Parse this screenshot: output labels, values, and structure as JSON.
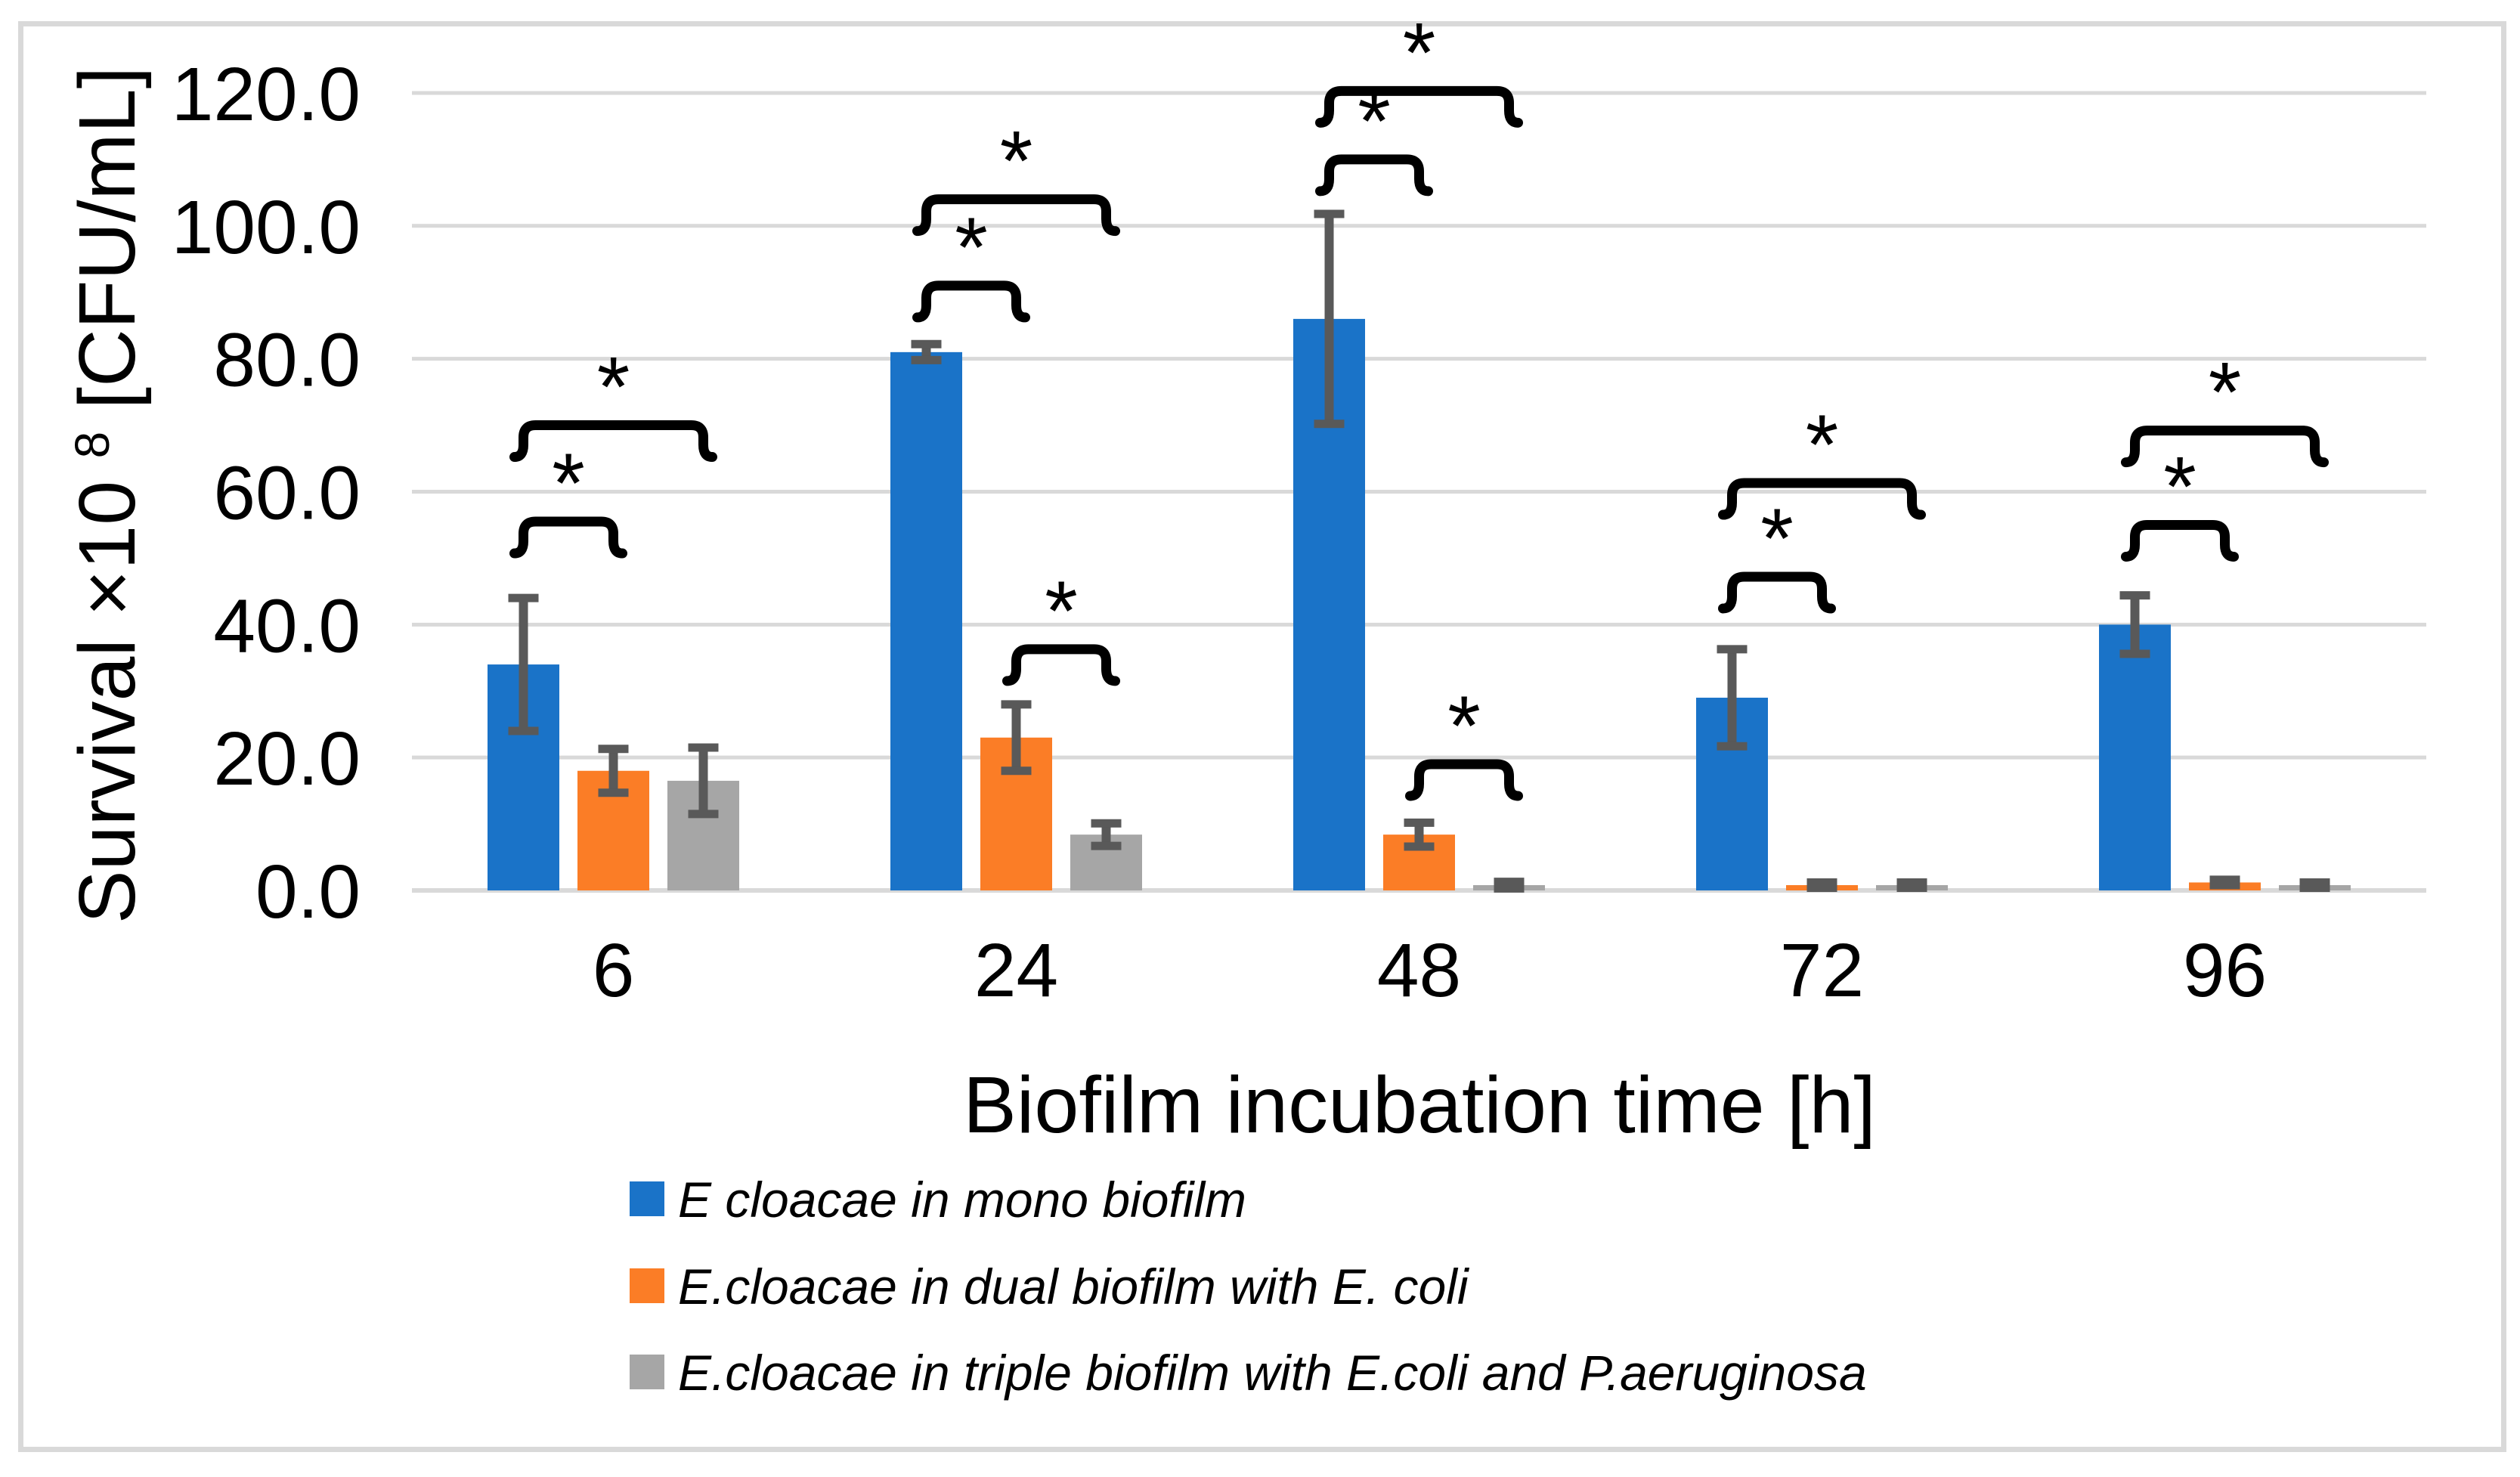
{
  "figure": {
    "background": "#FFFFFF",
    "border_color": "#D9D9D9"
  },
  "chart_data": {
    "type": "bar",
    "title": "",
    "xlabel": "Biofilm incubation time [h]",
    "ylabel": "Survival ×10⁸ [CFU/mL]",
    "ylabel_parts": {
      "prefix": "Survival ×10",
      "superscript": "8",
      "suffix": " [CFU/mL]"
    },
    "categories": [
      "6",
      "24",
      "48",
      "72",
      "96"
    ],
    "y_ticks": [
      "120.0",
      "100.0",
      "80.0",
      "60.0",
      "40.0",
      "20.0",
      "0.0"
    ],
    "ylim": [
      0,
      120
    ],
    "grid": true,
    "gridline_color": "#D9D9D9",
    "error_bar_color": "#595959",
    "legend_position": "bottom-left",
    "series": [
      {
        "name": "E cloacae in mono biofilm",
        "color": "#1A73C8",
        "values": [
          34,
          81,
          86,
          29,
          40
        ],
        "errors": [
          10,
          1.2,
          15.8,
          7.3,
          4.4
        ]
      },
      {
        "name": "E.cloacae in dual biofilm with E. coli",
        "color": "#FB7D26",
        "values": [
          18,
          23,
          8.4,
          0.8,
          1.2
        ],
        "errors": [
          3.3,
          5,
          1.8,
          0.4,
          0.4
        ]
      },
      {
        "name": "E.cloacae in triple biofilm with E.coli and P.aeruginosa",
        "color": "#A6A6A6",
        "values": [
          16.5,
          8.4,
          0.8,
          0.8,
          0.8
        ],
        "errors": [
          5,
          1.7,
          0.5,
          0.4,
          0.4
        ]
      }
    ],
    "significance_brackets": [
      {
        "group": 0,
        "from": 0,
        "to": 1,
        "y": 55.5,
        "label": "*"
      },
      {
        "group": 0,
        "from": 0,
        "to": 2,
        "y": 70,
        "label": "*"
      },
      {
        "group": 1,
        "from": 0,
        "to": 1,
        "y": 91,
        "label": "*"
      },
      {
        "group": 1,
        "from": 0,
        "to": 2,
        "y": 104,
        "label": "*"
      },
      {
        "group": 1,
        "from": 1,
        "to": 2,
        "y": 36.3,
        "label": "*"
      },
      {
        "group": 2,
        "from": 0,
        "to": 1,
        "y": 110,
        "label": "*"
      },
      {
        "group": 2,
        "from": 0,
        "to": 2,
        "y": 120.3,
        "label": "*"
      },
      {
        "group": 2,
        "from": 1,
        "to": 2,
        "y": 19,
        "label": "*"
      },
      {
        "group": 3,
        "from": 0,
        "to": 1,
        "y": 47.2,
        "label": "*"
      },
      {
        "group": 3,
        "from": 0,
        "to": 2,
        "y": 61.3,
        "label": "*"
      },
      {
        "group": 4,
        "from": 0,
        "to": 1,
        "y": 55,
        "label": "*"
      },
      {
        "group": 4,
        "from": 0,
        "to": 2,
        "y": 69.2,
        "label": "*"
      }
    ]
  }
}
